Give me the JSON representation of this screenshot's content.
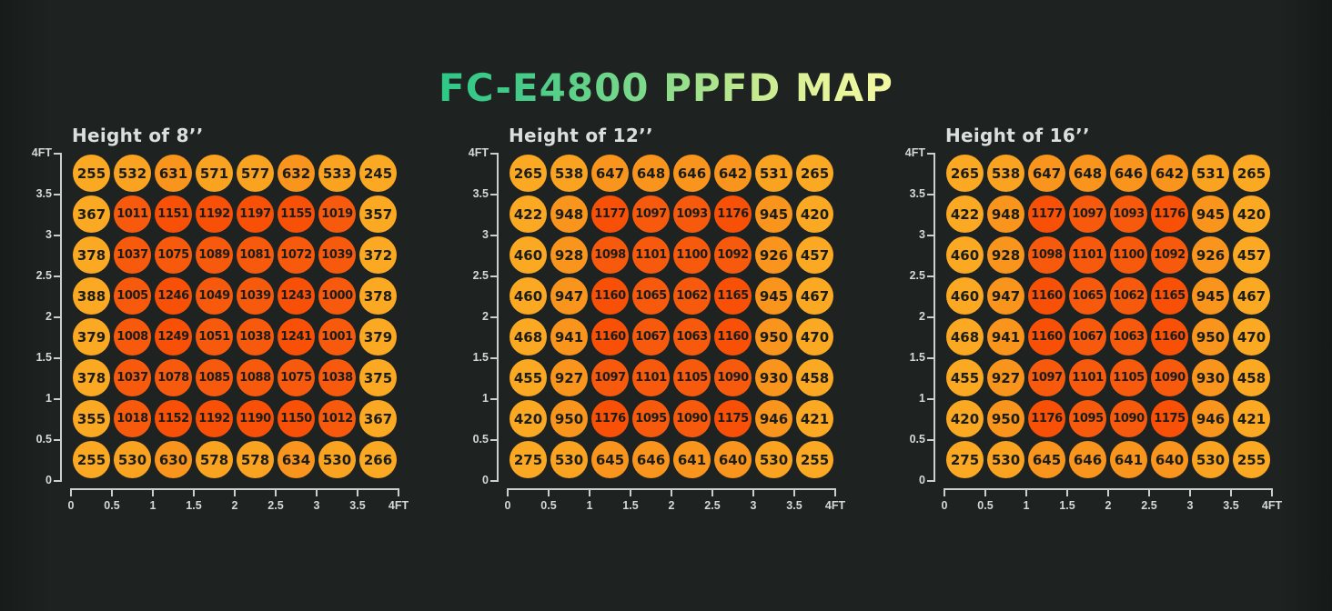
{
  "title": "FC-E4800 PPFD MAP",
  "title_gradient": [
    "#2ec887",
    "#7ed98a",
    "#b9e78d",
    "#f2f8a3"
  ],
  "axes": {
    "unit": "FT",
    "x_labels": [
      "0",
      "0.5",
      "1",
      "1.5",
      "2",
      "2.5",
      "3",
      "3.5",
      "4FT"
    ],
    "y_labels": [
      "4FT",
      "3.5",
      "3",
      "2.5",
      "2",
      "1.5",
      "1",
      "0.5",
      "0"
    ],
    "x_range": [
      0,
      4
    ],
    "y_range": [
      0,
      4
    ]
  },
  "color_scale": [
    {
      "max": 499,
      "color": "#fba822"
    },
    {
      "max": 599,
      "color": "#faa321"
    },
    {
      "max": 999,
      "color": "#f9941c"
    },
    {
      "max": 1149,
      "color": "#f85a0d"
    },
    {
      "max": 9999,
      "color": "#f85007"
    }
  ],
  "chart_data": [
    {
      "type": "heatmap",
      "subtitle": "Height of 8’’",
      "values": [
        [
          255,
          532,
          631,
          571,
          577,
          632,
          533,
          245
        ],
        [
          367,
          1011,
          1151,
          1192,
          1197,
          1155,
          1019,
          357
        ],
        [
          378,
          1037,
          1075,
          1089,
          1081,
          1072,
          1039,
          372
        ],
        [
          388,
          1005,
          1246,
          1049,
          1039,
          1243,
          1000,
          378
        ],
        [
          379,
          1008,
          1249,
          1051,
          1038,
          1241,
          1001,
          379
        ],
        [
          378,
          1037,
          1078,
          1085,
          1088,
          1075,
          1038,
          375
        ],
        [
          355,
          1018,
          1152,
          1192,
          1190,
          1150,
          1012,
          367
        ],
        [
          255,
          530,
          630,
          578,
          578,
          634,
          530,
          266
        ]
      ]
    },
    {
      "type": "heatmap",
      "subtitle": "Height of 12’’",
      "values": [
        [
          265,
          538,
          647,
          648,
          646,
          642,
          531,
          265
        ],
        [
          422,
          948,
          1177,
          1097,
          1093,
          1176,
          945,
          420
        ],
        [
          460,
          928,
          1098,
          1101,
          1100,
          1092,
          926,
          457
        ],
        [
          460,
          947,
          1160,
          1065,
          1062,
          1165,
          945,
          467
        ],
        [
          468,
          941,
          1160,
          1067,
          1063,
          1160,
          950,
          470
        ],
        [
          455,
          927,
          1097,
          1101,
          1105,
          1090,
          930,
          458
        ],
        [
          420,
          950,
          1176,
          1095,
          1090,
          1175,
          946,
          421
        ],
        [
          275,
          530,
          645,
          646,
          641,
          640,
          530,
          255
        ]
      ]
    },
    {
      "type": "heatmap",
      "subtitle": "Height of 16’’",
      "values": [
        [
          265,
          538,
          647,
          648,
          646,
          642,
          531,
          265
        ],
        [
          422,
          948,
          1177,
          1097,
          1093,
          1176,
          945,
          420
        ],
        [
          460,
          928,
          1098,
          1101,
          1100,
          1092,
          926,
          457
        ],
        [
          460,
          947,
          1160,
          1065,
          1062,
          1165,
          945,
          467
        ],
        [
          468,
          941,
          1160,
          1067,
          1063,
          1160,
          950,
          470
        ],
        [
          455,
          927,
          1097,
          1101,
          1105,
          1090,
          930,
          458
        ],
        [
          420,
          950,
          1176,
          1095,
          1090,
          1175,
          946,
          421
        ],
        [
          275,
          530,
          645,
          646,
          641,
          640,
          530,
          255
        ]
      ]
    }
  ]
}
